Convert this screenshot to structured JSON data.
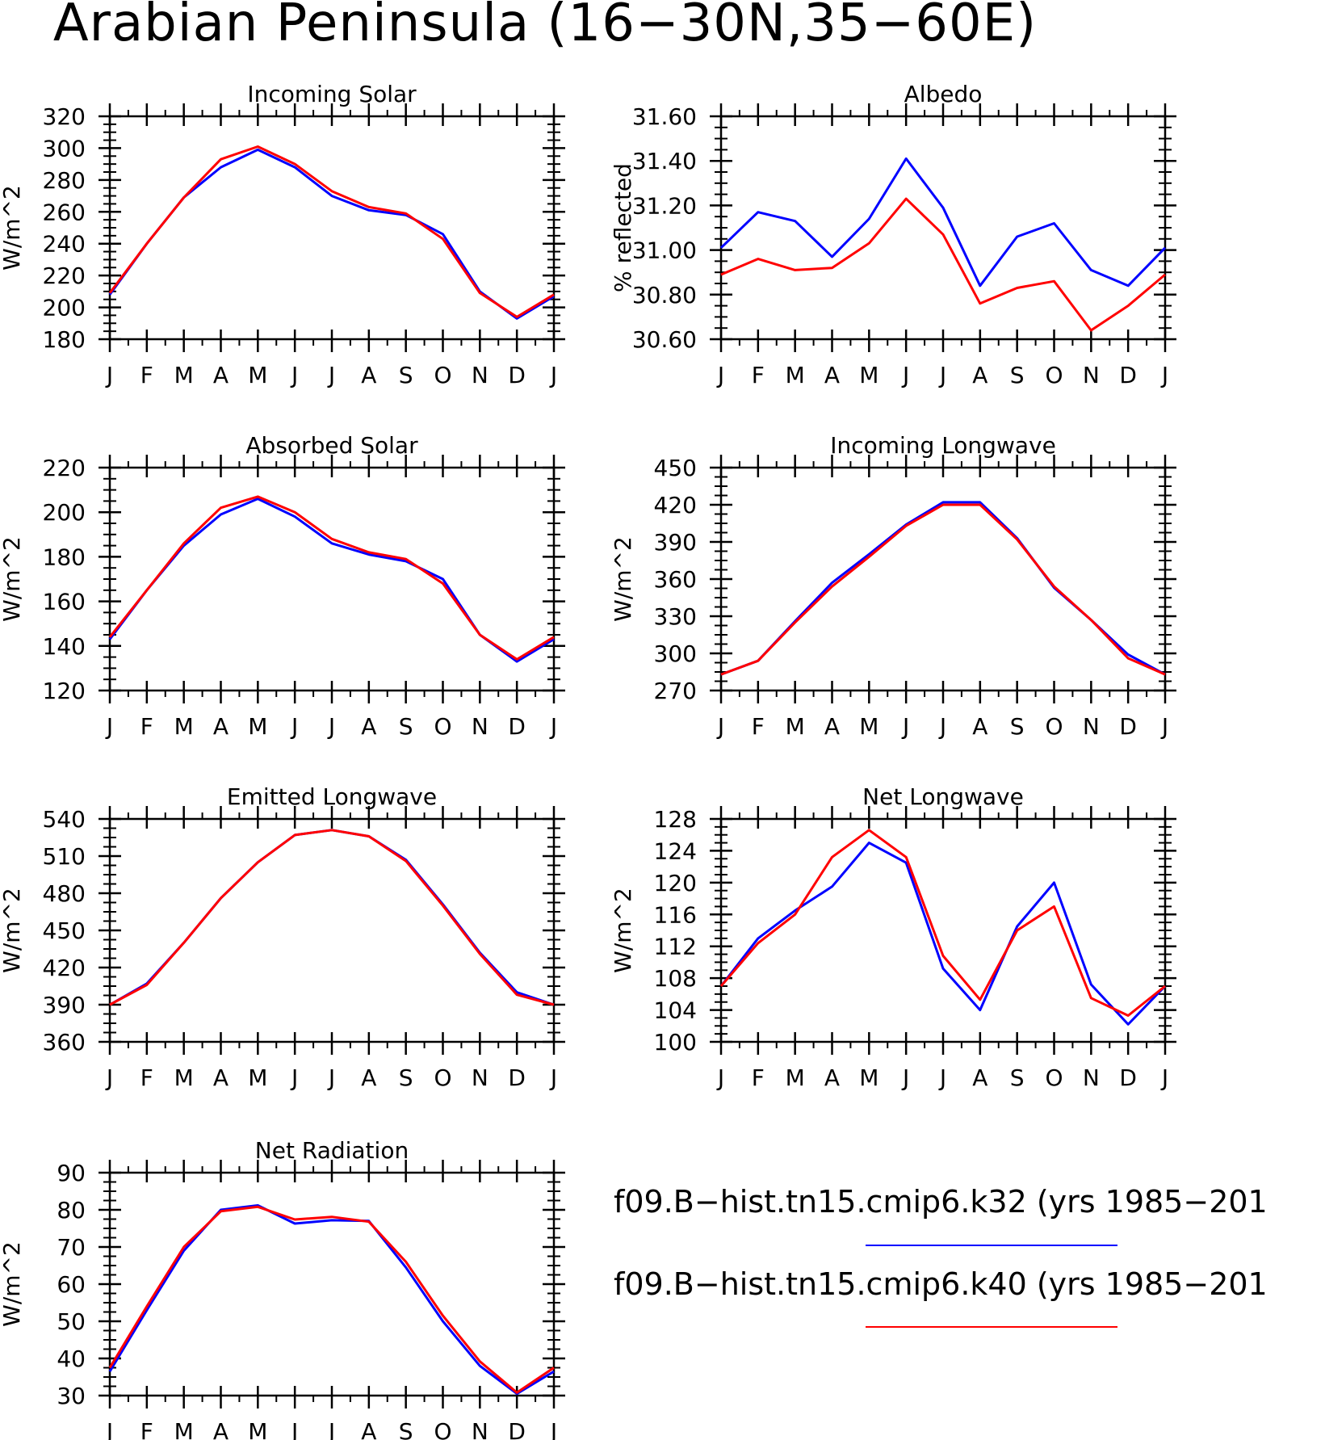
{
  "title": "Arabian Peninsula (16−30N,35−60E)",
  "legend": {
    "entries": [
      {
        "label": "f09.B−hist.tn15.cmip6.k32 (yrs 1985−201",
        "color": "#0000ff"
      },
      {
        "label": "f09.B−hist.tn15.cmip6.k40 (yrs 1985−201",
        "color": "#ff0000"
      }
    ]
  },
  "colors": {
    "series_blue": "#0000ff",
    "series_red": "#ff0000",
    "axis": "#000000"
  },
  "chart_data": [
    {
      "type": "line",
      "title": "Incoming Solar",
      "xlabel": "",
      "ylabel": "W/m^2",
      "categories": [
        "J",
        "F",
        "M",
        "A",
        "M",
        "J",
        "J",
        "A",
        "S",
        "O",
        "N",
        "D",
        "J"
      ],
      "ylim": [
        180,
        320
      ],
      "yticks": [
        180,
        200,
        220,
        240,
        260,
        280,
        300,
        320
      ],
      "tick_decimals": 0,
      "series": [
        {
          "color": "blue",
          "values": [
            208,
            240,
            269,
            288,
            299,
            288,
            270,
            261,
            258,
            246,
            210,
            193,
            207
          ]
        },
        {
          "color": "red",
          "values": [
            209,
            240,
            269,
            293,
            301,
            290,
            273,
            263,
            259,
            243,
            209,
            194,
            208
          ]
        }
      ]
    },
    {
      "type": "line",
      "title": "Albedo",
      "xlabel": "",
      "ylabel": "% reflected",
      "categories": [
        "J",
        "F",
        "M",
        "A",
        "M",
        "J",
        "J",
        "A",
        "S",
        "O",
        "N",
        "D",
        "J"
      ],
      "ylim": [
        30.6,
        31.6
      ],
      "yticks": [
        30.6,
        30.8,
        31.0,
        31.2,
        31.4,
        31.6
      ],
      "tick_decimals": 2,
      "series": [
        {
          "color": "blue",
          "values": [
            31.01,
            31.17,
            31.13,
            30.97,
            31.14,
            31.41,
            31.19,
            30.84,
            31.06,
            31.12,
            30.91,
            30.84,
            31.01
          ]
        },
        {
          "color": "red",
          "values": [
            30.89,
            30.96,
            30.91,
            30.92,
            31.03,
            31.23,
            31.07,
            30.76,
            30.83,
            30.86,
            30.64,
            30.75,
            30.89
          ]
        }
      ]
    },
    {
      "type": "line",
      "title": "Absorbed Solar",
      "xlabel": "",
      "ylabel": "W/m^2",
      "categories": [
        "J",
        "F",
        "M",
        "A",
        "M",
        "J",
        "J",
        "A",
        "S",
        "O",
        "N",
        "D",
        "J"
      ],
      "ylim": [
        120,
        220
      ],
      "yticks": [
        120,
        140,
        160,
        180,
        200,
        220
      ],
      "tick_decimals": 0,
      "series": [
        {
          "color": "blue",
          "values": [
            143,
            165,
            185,
            199,
            206,
            198,
            186,
            181,
            178,
            170,
            145,
            133,
            143
          ]
        },
        {
          "color": "red",
          "values": [
            144,
            165,
            186,
            202,
            207,
            200,
            188,
            182,
            179,
            168,
            145,
            134,
            144
          ]
        }
      ]
    },
    {
      "type": "line",
      "title": "Incoming Longwave",
      "xlabel": "",
      "ylabel": "W/m^2",
      "categories": [
        "J",
        "F",
        "M",
        "A",
        "M",
        "J",
        "J",
        "A",
        "S",
        "O",
        "N",
        "D",
        "J"
      ],
      "ylim": [
        270,
        450
      ],
      "yticks": [
        270,
        300,
        330,
        360,
        390,
        420,
        450
      ],
      "tick_decimals": 0,
      "series": [
        {
          "color": "blue",
          "values": [
            283,
            294,
            326,
            357,
            380,
            404,
            422,
            422,
            393,
            353,
            327,
            299,
            283
          ]
        },
        {
          "color": "red",
          "values": [
            283,
            294,
            325,
            354,
            378,
            403,
            420,
            420,
            392,
            354,
            327,
            296,
            283
          ]
        }
      ]
    },
    {
      "type": "line",
      "title": "Emitted Longwave",
      "xlabel": "",
      "ylabel": "W/m^2",
      "categories": [
        "J",
        "F",
        "M",
        "A",
        "M",
        "J",
        "J",
        "A",
        "S",
        "O",
        "N",
        "D",
        "J"
      ],
      "ylim": [
        360,
        540
      ],
      "yticks": [
        360,
        390,
        420,
        450,
        480,
        510,
        540
      ],
      "tick_decimals": 0,
      "series": [
        {
          "color": "blue",
          "values": [
            390,
            407,
            440,
            476,
            505,
            527,
            531,
            526,
            507,
            471,
            432,
            400,
            390
          ]
        },
        {
          "color": "red",
          "values": [
            390,
            406,
            440,
            476,
            505,
            527,
            531,
            526,
            506,
            470,
            431,
            398,
            390
          ]
        }
      ]
    },
    {
      "type": "line",
      "title": "Net Longwave",
      "xlabel": "",
      "ylabel": "W/m^2",
      "categories": [
        "J",
        "F",
        "M",
        "A",
        "M",
        "J",
        "J",
        "A",
        "S",
        "O",
        "N",
        "D",
        "J"
      ],
      "ylim": [
        100,
        128
      ],
      "yticks": [
        100,
        104,
        108,
        112,
        116,
        120,
        124,
        128
      ],
      "tick_decimals": 0,
      "series": [
        {
          "color": "blue",
          "values": [
            107,
            113,
            116.5,
            119.5,
            125,
            122.5,
            109.2,
            104,
            114.5,
            120,
            107.2,
            102.2,
            107
          ]
        },
        {
          "color": "red",
          "values": [
            107,
            112.4,
            116,
            123.2,
            126.6,
            123.2,
            110.8,
            105.3,
            114,
            117,
            105.5,
            103.3,
            107
          ]
        }
      ]
    },
    {
      "type": "line",
      "title": "Net Radiation",
      "xlabel": "",
      "ylabel": "W/m^2",
      "categories": [
        "J",
        "F",
        "M",
        "A",
        "M",
        "J",
        "J",
        "A",
        "S",
        "O",
        "N",
        "D",
        "J"
      ],
      "ylim": [
        30,
        90
      ],
      "yticks": [
        30,
        40,
        50,
        60,
        70,
        80,
        90
      ],
      "tick_decimals": 0,
      "series": [
        {
          "color": "blue",
          "values": [
            36.5,
            53,
            69,
            80,
            81.2,
            76.3,
            77.2,
            77,
            64.5,
            50,
            38,
            30.5,
            36.5
          ]
        },
        {
          "color": "red",
          "values": [
            37.5,
            54,
            70,
            79.6,
            80.8,
            77.4,
            78.1,
            76.8,
            66,
            51.5,
            39.2,
            30.8,
            37.5
          ]
        }
      ]
    }
  ]
}
